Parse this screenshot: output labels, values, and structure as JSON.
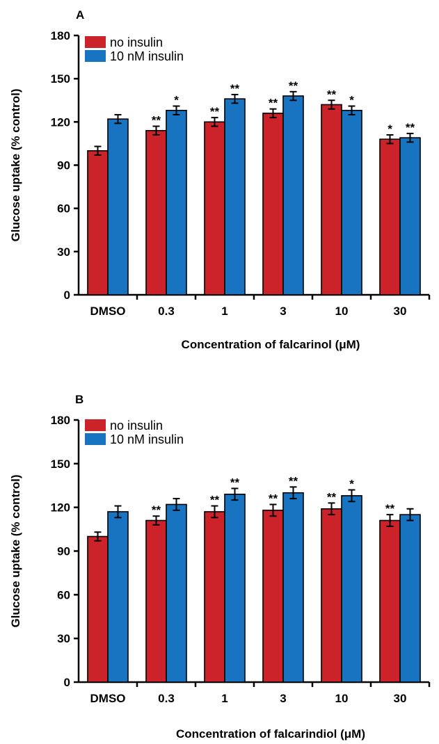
{
  "colors": {
    "no_insulin": "#CC2229",
    "insulin": "#1874C1",
    "axis": "#000000"
  },
  "chart_data": [
    {
      "panel_label": "A",
      "type": "bar",
      "categories": [
        "DMSO",
        "0.3",
        "1",
        "3",
        "10",
        "30"
      ],
      "series": [
        {
          "name": "no insulin",
          "values": [
            100,
            114,
            120,
            126,
            132,
            108
          ],
          "errors": [
            3,
            3,
            3,
            3,
            3,
            3
          ],
          "significance": [
            "",
            "**",
            "**",
            "**",
            "**",
            "*"
          ]
        },
        {
          "name": "10 nM insulin",
          "values": [
            122,
            128,
            136,
            138,
            128,
            109
          ],
          "errors": [
            3,
            3,
            3,
            3,
            3,
            3
          ],
          "significance": [
            "",
            "*",
            "**",
            "**",
            "*",
            "**"
          ]
        }
      ],
      "xlabel": "Concentration of falcarinol (μM)",
      "ylabel": "Glucose uptake (% control)",
      "ylim": [
        0,
        180
      ],
      "yticks": [
        "0",
        "30",
        "60",
        "90",
        "120",
        "150",
        "180"
      ],
      "legend_position": "top-left",
      "grid": false
    },
    {
      "panel_label": "B",
      "type": "bar",
      "categories": [
        "DMSO",
        "0.3",
        "1",
        "3",
        "10",
        "30"
      ],
      "series": [
        {
          "name": "no insulin",
          "values": [
            100,
            111,
            117,
            118,
            119,
            111
          ],
          "errors": [
            3,
            3,
            4,
            4,
            4,
            4
          ],
          "significance": [
            "",
            "**",
            "**",
            "**",
            "**",
            "**"
          ]
        },
        {
          "name": "10 nM insulin",
          "values": [
            117,
            122,
            129,
            130,
            128,
            115
          ],
          "errors": [
            4,
            4,
            4,
            4,
            4,
            4
          ],
          "significance": [
            "",
            "",
            "**",
            "**",
            "*",
            ""
          ]
        }
      ],
      "xlabel": "Concentration of falcarindiol (μM)",
      "ylabel": "Glucose uptake (% control)",
      "ylim": [
        0,
        180
      ],
      "yticks": [
        "0",
        "30",
        "60",
        "90",
        "120",
        "150",
        "180"
      ],
      "legend_position": "top-left",
      "grid": false
    }
  ]
}
